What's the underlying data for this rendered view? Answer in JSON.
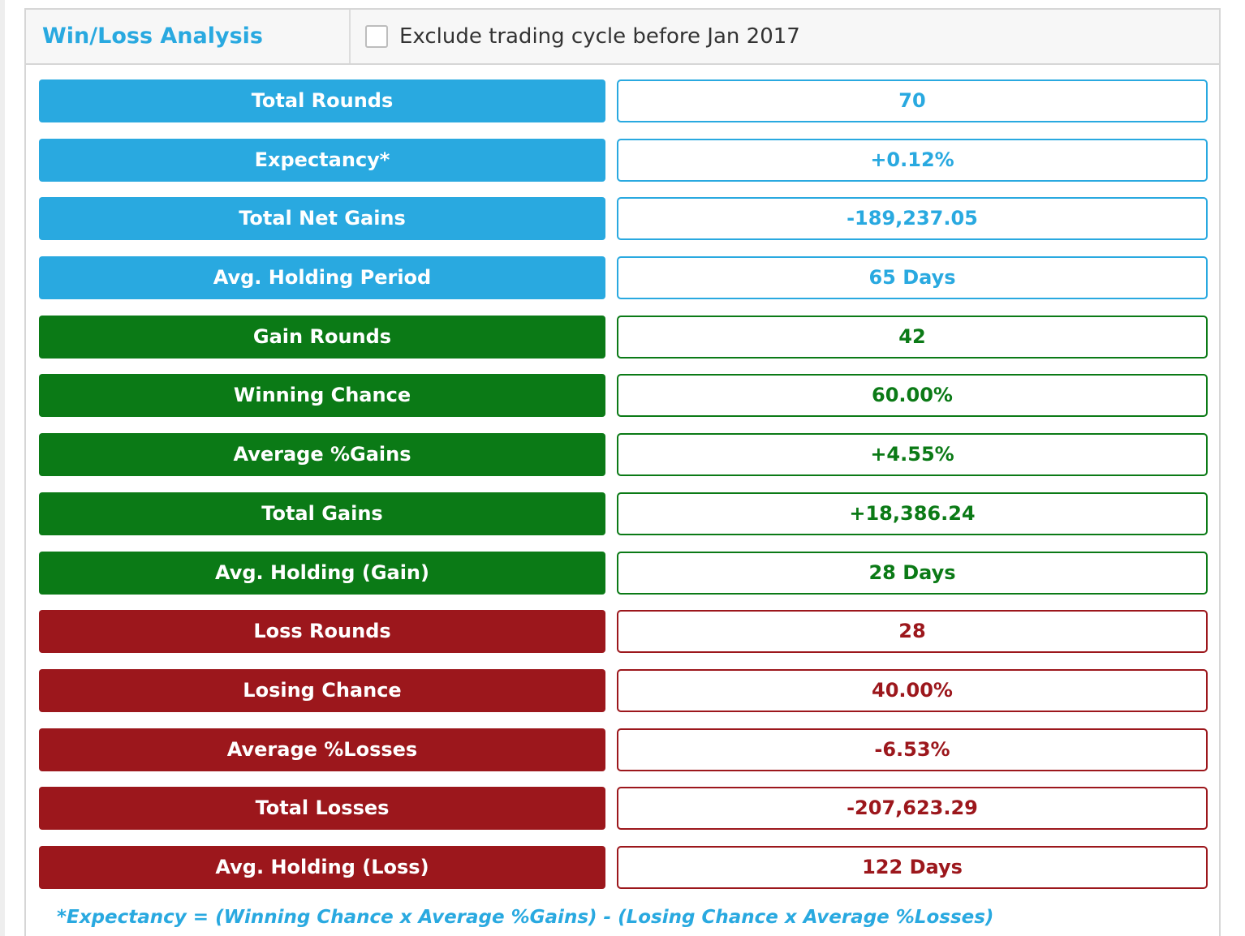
{
  "header": {
    "title": "Win/Loss Analysis",
    "exclude_checkbox_checked": false,
    "exclude_label": "Exclude trading cycle before Jan 2017"
  },
  "colors": {
    "info": "#29a9e0",
    "gain": "#0b7a16",
    "loss": "#9c171c"
  },
  "rows": [
    {
      "label": "Total Rounds",
      "value": "70",
      "group": "info"
    },
    {
      "label": "Expectancy*",
      "value": "+0.12%",
      "group": "info"
    },
    {
      "label": "Total Net Gains",
      "value": "-189,237.05",
      "group": "info"
    },
    {
      "label": "Avg. Holding Period",
      "value": "65 Days",
      "group": "info"
    },
    {
      "label": "Gain Rounds",
      "value": "42",
      "group": "gain"
    },
    {
      "label": "Winning Chance",
      "value": "60.00%",
      "group": "gain"
    },
    {
      "label": "Average %Gains",
      "value": "+4.55%",
      "group": "gain"
    },
    {
      "label": "Total Gains",
      "value": "+18,386.24",
      "group": "gain"
    },
    {
      "label": "Avg. Holding (Gain)",
      "value": "28 Days",
      "group": "gain"
    },
    {
      "label": "Loss Rounds",
      "value": "28",
      "group": "loss"
    },
    {
      "label": "Losing Chance",
      "value": "40.00%",
      "group": "loss"
    },
    {
      "label": "Average %Losses",
      "value": "-6.53%",
      "group": "loss"
    },
    {
      "label": "Total Losses",
      "value": "-207,623.29",
      "group": "loss"
    },
    {
      "label": "Avg. Holding (Loss)",
      "value": "122 Days",
      "group": "loss"
    }
  ],
  "footnote": "*Expectancy = (Winning Chance x Average %Gains) - (Losing Chance x Average %Losses)"
}
